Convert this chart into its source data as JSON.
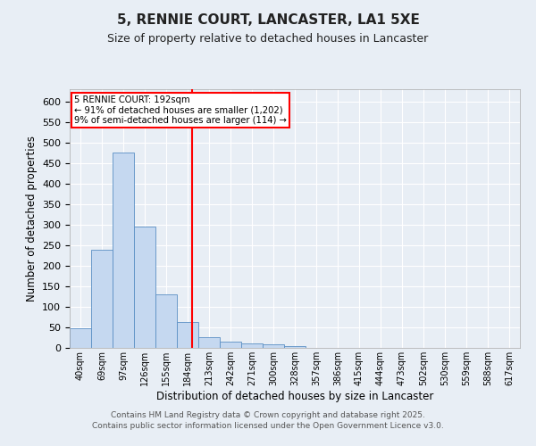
{
  "title": "5, RENNIE COURT, LANCASTER, LA1 5XE",
  "subtitle": "Size of property relative to detached houses in Lancaster",
  "xlabel": "Distribution of detached houses by size in Lancaster",
  "ylabel": "Number of detached properties",
  "categories": [
    "40sqm",
    "69sqm",
    "97sqm",
    "126sqm",
    "155sqm",
    "184sqm",
    "213sqm",
    "242sqm",
    "271sqm",
    "300sqm",
    "328sqm",
    "357sqm",
    "386sqm",
    "415sqm",
    "444sqm",
    "473sqm",
    "502sqm",
    "530sqm",
    "559sqm",
    "588sqm",
    "617sqm"
  ],
  "values": [
    48,
    240,
    475,
    296,
    130,
    63,
    27,
    15,
    10,
    8,
    5,
    0,
    0,
    0,
    0,
    0,
    0,
    0,
    0,
    0,
    0
  ],
  "bar_color": "#c5d8f0",
  "bar_edge_color": "#5a8fc4",
  "background_color": "#e8eef5",
  "grid_color": "#ffffff",
  "vline_x_index": 5,
  "vline_color": "red",
  "annotation_title": "5 RENNIE COURT: 192sqm",
  "annotation_line1": "← 91% of detached houses are smaller (1,202)",
  "annotation_line2": "9% of semi-detached houses are larger (114) →",
  "annotation_box_color": "red",
  "ylim": [
    0,
    630
  ],
  "yticks": [
    0,
    50,
    100,
    150,
    200,
    250,
    300,
    350,
    400,
    450,
    500,
    550,
    600
  ],
  "footer_line1": "Contains HM Land Registry data © Crown copyright and database right 2025.",
  "footer_line2": "Contains public sector information licensed under the Open Government Licence v3.0."
}
